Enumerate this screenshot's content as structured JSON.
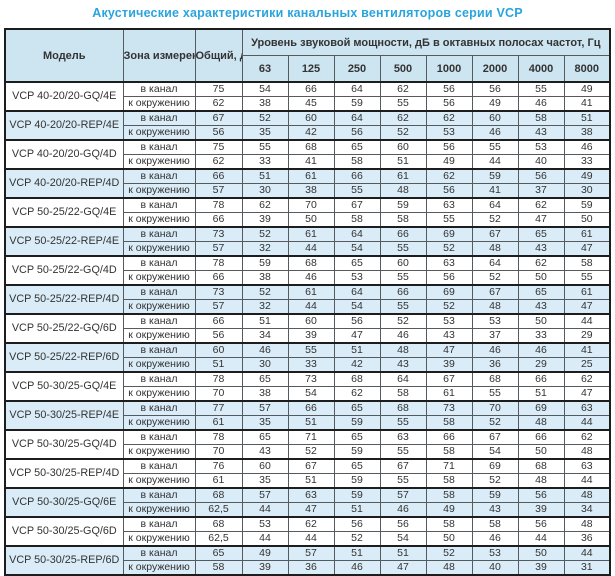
{
  "title": "Акустические характеристики канальных вентиляторов  серии VCP",
  "table": {
    "headers": {
      "model": "Модель",
      "zone": "Зона измерения",
      "total": "Общий, дБА",
      "freq_group": "Уровень звуковой мощности, дБ в октавных полосах частот, Гц",
      "frequencies": [
        "63",
        "125",
        "250",
        "500",
        "1000",
        "2000",
        "4000",
        "8000"
      ]
    },
    "zone_labels": {
      "duct": "в канал",
      "ambient": "к окружению"
    },
    "colors": {
      "title": "#29a4dd",
      "header_bg": "#cde4f1",
      "highlight_row_bg": "#daecf7",
      "border": "#555a5e",
      "group_border": "#1d1d1d"
    },
    "rows": [
      {
        "model": "VCP 40-20/20-GQ/4E",
        "highlight": false,
        "duct": {
          "total": "75",
          "values": [
            "54",
            "66",
            "64",
            "62",
            "56",
            "56",
            "55",
            "49"
          ]
        },
        "ambient": {
          "total": "62",
          "values": [
            "38",
            "45",
            "59",
            "55",
            "56",
            "49",
            "46",
            "41"
          ]
        }
      },
      {
        "model": "VCP 40-20/20-REP/4E",
        "highlight": true,
        "duct": {
          "total": "67",
          "values": [
            "52",
            "60",
            "64",
            "62",
            "62",
            "60",
            "58",
            "51"
          ]
        },
        "ambient": {
          "total": "56",
          "values": [
            "35",
            "42",
            "56",
            "52",
            "53",
            "46",
            "43",
            "38"
          ]
        }
      },
      {
        "model": "VCP 40-20/20-GQ/4D",
        "highlight": false,
        "duct": {
          "total": "75",
          "values": [
            "55",
            "68",
            "65",
            "60",
            "56",
            "55",
            "53",
            "46"
          ]
        },
        "ambient": {
          "total": "62",
          "values": [
            "33",
            "41",
            "58",
            "51",
            "49",
            "44",
            "40",
            "33"
          ]
        }
      },
      {
        "model": "VCP 40-20/20-REP/4D",
        "highlight": true,
        "duct": {
          "total": "66",
          "values": [
            "51",
            "61",
            "66",
            "61",
            "62",
            "59",
            "56",
            "49"
          ]
        },
        "ambient": {
          "total": "57",
          "values": [
            "30",
            "38",
            "55",
            "48",
            "56",
            "41",
            "37",
            "30"
          ]
        }
      },
      {
        "model": "VCP 50-25/22-GQ/4E",
        "highlight": false,
        "duct": {
          "total": "78",
          "values": [
            "62",
            "70",
            "67",
            "59",
            "63",
            "64",
            "62",
            "59"
          ]
        },
        "ambient": {
          "total": "66",
          "values": [
            "39",
            "50",
            "58",
            "58",
            "55",
            "52",
            "47",
            "50"
          ]
        }
      },
      {
        "model": "VCP 50-25/22-REP/4E",
        "highlight": true,
        "duct": {
          "total": "73",
          "values": [
            "52",
            "61",
            "64",
            "66",
            "69",
            "67",
            "65",
            "61"
          ]
        },
        "ambient": {
          "total": "57",
          "values": [
            "32",
            "44",
            "54",
            "55",
            "52",
            "48",
            "43",
            "47"
          ]
        }
      },
      {
        "model": "VCP 50-25/22-GQ/4D",
        "highlight": false,
        "duct": {
          "total": "78",
          "values": [
            "59",
            "68",
            "65",
            "60",
            "63",
            "64",
            "62",
            "58"
          ]
        },
        "ambient": {
          "total": "66",
          "values": [
            "38",
            "46",
            "53",
            "55",
            "56",
            "52",
            "50",
            "55"
          ]
        }
      },
      {
        "model": "VCP 50-25/22-REP/4D",
        "highlight": true,
        "duct": {
          "total": "73",
          "values": [
            "52",
            "61",
            "64",
            "66",
            "69",
            "67",
            "65",
            "61"
          ]
        },
        "ambient": {
          "total": "57",
          "values": [
            "32",
            "44",
            "54",
            "55",
            "52",
            "48",
            "43",
            "47"
          ]
        }
      },
      {
        "model": "VCP 50-25/22-GQ/6D",
        "highlight": false,
        "duct": {
          "total": "66",
          "values": [
            "51",
            "60",
            "56",
            "52",
            "53",
            "53",
            "50",
            "44"
          ]
        },
        "ambient": {
          "total": "56",
          "values": [
            "34",
            "39",
            "47",
            "46",
            "43",
            "37",
            "33",
            "29"
          ]
        }
      },
      {
        "model": "VCP 50-25/22-REP/6D",
        "highlight": true,
        "duct": {
          "total": "60",
          "values": [
            "46",
            "55",
            "51",
            "48",
            "47",
            "46",
            "46",
            "41"
          ]
        },
        "ambient": {
          "total": "51",
          "values": [
            "30",
            "33",
            "42",
            "43",
            "39",
            "36",
            "29",
            "25"
          ]
        }
      },
      {
        "model": "VCP 50-30/25-GQ/4E",
        "highlight": false,
        "duct": {
          "total": "78",
          "values": [
            "65",
            "73",
            "68",
            "64",
            "67",
            "68",
            "66",
            "62"
          ]
        },
        "ambient": {
          "total": "70",
          "values": [
            "38",
            "54",
            "62",
            "58",
            "61",
            "55",
            "51",
            "47"
          ]
        }
      },
      {
        "model": "VCP 50-30/25-REP/4E",
        "highlight": true,
        "duct": {
          "total": "77",
          "values": [
            "57",
            "66",
            "65",
            "68",
            "73",
            "70",
            "69",
            "63"
          ]
        },
        "ambient": {
          "total": "61",
          "values": [
            "35",
            "51",
            "59",
            "55",
            "58",
            "52",
            "48",
            "44"
          ]
        }
      },
      {
        "model": "VCP 50-30/25-GQ/4D",
        "highlight": false,
        "duct": {
          "total": "78",
          "values": [
            "65",
            "71",
            "65",
            "63",
            "66",
            "67",
            "66",
            "62"
          ]
        },
        "ambient": {
          "total": "70",
          "values": [
            "43",
            "52",
            "59",
            "55",
            "58",
            "54",
            "50",
            "48"
          ]
        }
      },
      {
        "model": "VCP 50-30/25-REP/4D",
        "highlight": false,
        "duct": {
          "total": "76",
          "values": [
            "60",
            "67",
            "65",
            "67",
            "71",
            "69",
            "68",
            "63"
          ]
        },
        "ambient": {
          "total": "61",
          "values": [
            "35",
            "51",
            "59",
            "55",
            "58",
            "52",
            "48",
            "44"
          ]
        }
      },
      {
        "model": "VCP 50-30/25-GQ/6E",
        "highlight": true,
        "duct": {
          "total": "68",
          "values": [
            "57",
            "63",
            "59",
            "57",
            "58",
            "59",
            "56",
            "48"
          ]
        },
        "ambient": {
          "total": "62,5",
          "values": [
            "44",
            "47",
            "51",
            "46",
            "49",
            "43",
            "39",
            "34"
          ]
        }
      },
      {
        "model": "VCP 50-30/25-GQ/6D",
        "highlight": false,
        "duct": {
          "total": "68",
          "values": [
            "53",
            "62",
            "56",
            "56",
            "58",
            "58",
            "56",
            "48"
          ]
        },
        "ambient": {
          "total": "62,5",
          "values": [
            "44",
            "44",
            "52",
            "54",
            "50",
            "46",
            "44",
            "36"
          ]
        }
      },
      {
        "model": "VCP 50-30/25-REP/6D",
        "highlight": true,
        "duct": {
          "total": "65",
          "values": [
            "49",
            "57",
            "51",
            "51",
            "52",
            "53",
            "50",
            "44"
          ]
        },
        "ambient": {
          "total": "58",
          "values": [
            "39",
            "36",
            "46",
            "47",
            "48",
            "40",
            "39",
            "31"
          ]
        }
      }
    ]
  }
}
